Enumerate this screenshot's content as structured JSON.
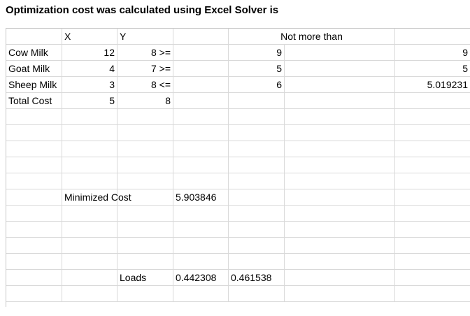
{
  "title": "Optimization cost was calculated using Excel Solver is",
  "grid": {
    "rows": [
      [
        {
          "t": ""
        },
        {
          "t": "X",
          "a": "lft"
        },
        {
          "t": "Y",
          "a": "lft"
        },
        {
          "t": ""
        },
        {
          "t": "Not more than",
          "a": "ctr",
          "span": 2
        },
        {
          "t": ""
        },
        {
          "t": ""
        }
      ],
      [
        {
          "t": "Cow Milk",
          "a": "lft"
        },
        {
          "t": "12",
          "a": "num"
        },
        {
          "t": "8 >=",
          "a": "num"
        },
        {
          "t": ""
        },
        {
          "t": "9",
          "a": "num"
        },
        {
          "t": ""
        },
        {
          "t": "9",
          "a": "num"
        }
      ],
      [
        {
          "t": "Goat Milk",
          "a": "lft"
        },
        {
          "t": "4",
          "a": "num"
        },
        {
          "t": "7 >=",
          "a": "num"
        },
        {
          "t": ""
        },
        {
          "t": "5",
          "a": "num"
        },
        {
          "t": ""
        },
        {
          "t": "5",
          "a": "num"
        }
      ],
      [
        {
          "t": "Sheep Milk",
          "a": "lft"
        },
        {
          "t": "3",
          "a": "num"
        },
        {
          "t": "8 <=",
          "a": "num"
        },
        {
          "t": ""
        },
        {
          "t": "6",
          "a": "num"
        },
        {
          "t": ""
        },
        {
          "t": "5.019231",
          "a": "num"
        }
      ],
      [
        {
          "t": "Total Cost",
          "a": "lft"
        },
        {
          "t": "5",
          "a": "num"
        },
        {
          "t": "8",
          "a": "num"
        },
        {
          "t": ""
        },
        {
          "t": ""
        },
        {
          "t": ""
        },
        {
          "t": ""
        }
      ],
      [
        {
          "t": ""
        },
        {
          "t": ""
        },
        {
          "t": ""
        },
        {
          "t": ""
        },
        {
          "t": ""
        },
        {
          "t": ""
        },
        {
          "t": ""
        }
      ],
      [
        {
          "t": ""
        },
        {
          "t": ""
        },
        {
          "t": ""
        },
        {
          "t": ""
        },
        {
          "t": ""
        },
        {
          "t": ""
        },
        {
          "t": ""
        }
      ],
      [
        {
          "t": ""
        },
        {
          "t": ""
        },
        {
          "t": ""
        },
        {
          "t": ""
        },
        {
          "t": ""
        },
        {
          "t": ""
        },
        {
          "t": ""
        }
      ],
      [
        {
          "t": ""
        },
        {
          "t": ""
        },
        {
          "t": ""
        },
        {
          "t": ""
        },
        {
          "t": ""
        },
        {
          "t": ""
        },
        {
          "t": ""
        }
      ],
      [
        {
          "t": ""
        },
        {
          "t": ""
        },
        {
          "t": ""
        },
        {
          "t": ""
        },
        {
          "t": ""
        },
        {
          "t": ""
        },
        {
          "t": ""
        }
      ],
      [
        {
          "t": ""
        },
        {
          "t": "Minimized Cost",
          "a": "lft"
        },
        {
          "t": ""
        },
        {
          "t": "5.903846",
          "a": "lft"
        },
        {
          "t": ""
        },
        {
          "t": ""
        },
        {
          "t": ""
        }
      ],
      [
        {
          "t": ""
        },
        {
          "t": ""
        },
        {
          "t": ""
        },
        {
          "t": ""
        },
        {
          "t": ""
        },
        {
          "t": ""
        },
        {
          "t": ""
        }
      ],
      [
        {
          "t": ""
        },
        {
          "t": ""
        },
        {
          "t": ""
        },
        {
          "t": ""
        },
        {
          "t": ""
        },
        {
          "t": ""
        },
        {
          "t": ""
        }
      ],
      [
        {
          "t": ""
        },
        {
          "t": ""
        },
        {
          "t": ""
        },
        {
          "t": ""
        },
        {
          "t": ""
        },
        {
          "t": ""
        },
        {
          "t": ""
        }
      ],
      [
        {
          "t": ""
        },
        {
          "t": ""
        },
        {
          "t": ""
        },
        {
          "t": ""
        },
        {
          "t": ""
        },
        {
          "t": ""
        },
        {
          "t": ""
        }
      ],
      [
        {
          "t": ""
        },
        {
          "t": ""
        },
        {
          "t": "Loads",
          "a": "lft"
        },
        {
          "t": "0.442308",
          "a": "lft"
        },
        {
          "t": "0.461538",
          "a": "lft"
        },
        {
          "t": ""
        },
        {
          "t": ""
        }
      ],
      [
        {
          "t": ""
        },
        {
          "t": ""
        },
        {
          "t": ""
        },
        {
          "t": ""
        },
        {
          "t": ""
        },
        {
          "t": ""
        },
        {
          "t": ""
        }
      ]
    ]
  }
}
